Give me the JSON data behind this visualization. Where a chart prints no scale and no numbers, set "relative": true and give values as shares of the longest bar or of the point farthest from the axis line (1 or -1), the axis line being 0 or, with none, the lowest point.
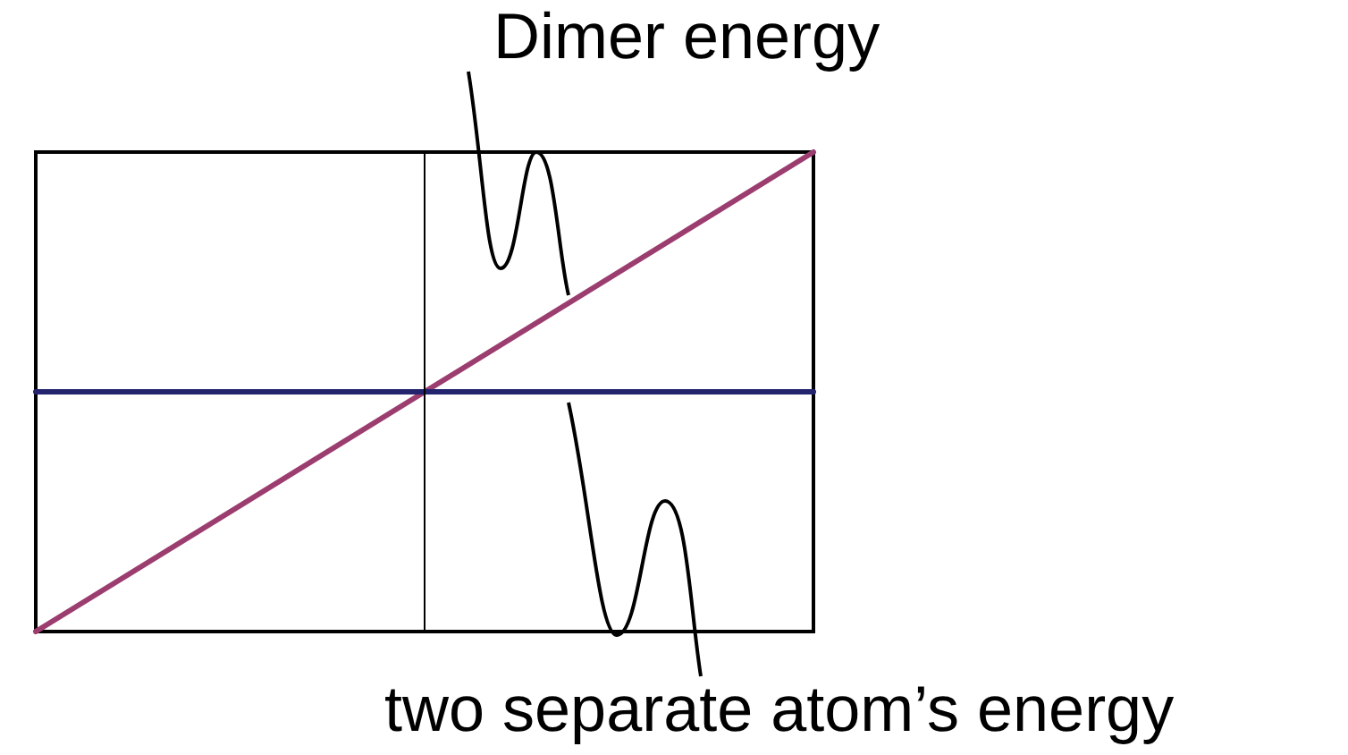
{
  "chart_data": {
    "type": "line",
    "relative": true,
    "categories": [
      null,
      null,
      null
    ],
    "series": [
      {
        "color": "#9c3d6f",
        "values": [
          0,
          0.5,
          1
        ]
      },
      {
        "color": "#23236e",
        "values": [
          0.5,
          0.5,
          0.5
        ]
      }
    ],
    "annotations": [
      "Dimer energy",
      "two separate atom’s energy"
    ],
    "marker": "none",
    "line_style": "solid"
  }
}
